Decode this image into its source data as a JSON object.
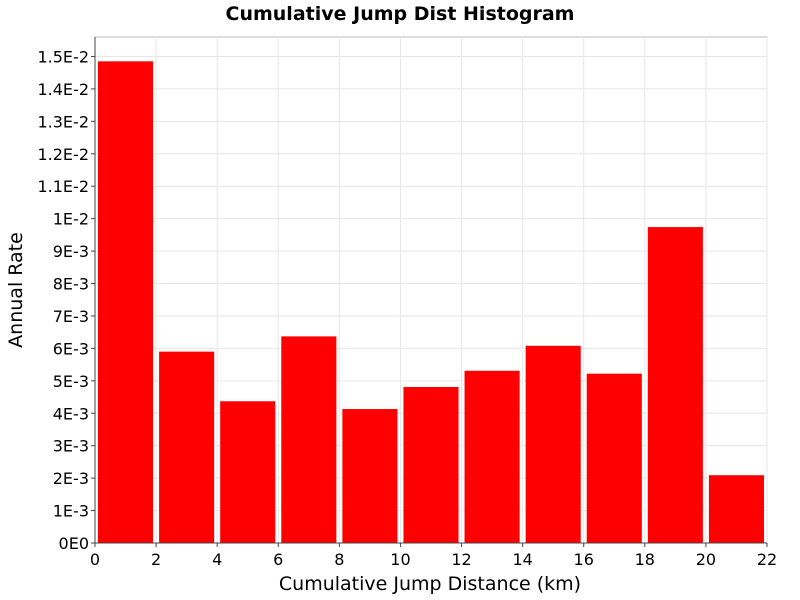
{
  "chart_data": {
    "type": "bar",
    "title": "Cumulative Jump Dist Histogram",
    "xlabel": "Cumulative Jump Distance (km)",
    "ylabel": "Annual Rate",
    "xlim": [
      0,
      22
    ],
    "ylim": [
      0,
      0.0156
    ],
    "bar_color": "#ff0000",
    "bins": [
      {
        "x0": 0,
        "x1": 2,
        "value": 0.01485
      },
      {
        "x0": 2,
        "x1": 4,
        "value": 0.0059
      },
      {
        "x0": 4,
        "x1": 6,
        "value": 0.00437
      },
      {
        "x0": 6,
        "x1": 8,
        "value": 0.00637
      },
      {
        "x0": 8,
        "x1": 10,
        "value": 0.00413
      },
      {
        "x0": 10,
        "x1": 12,
        "value": 0.00481
      },
      {
        "x0": 12,
        "x1": 14,
        "value": 0.00531
      },
      {
        "x0": 14,
        "x1": 16,
        "value": 0.00608
      },
      {
        "x0": 16,
        "x1": 18,
        "value": 0.00522
      },
      {
        "x0": 18,
        "x1": 20,
        "value": 0.00974
      },
      {
        "x0": 20,
        "x1": 22,
        "value": 0.00209
      }
    ],
    "x_ticks": [
      0,
      2,
      4,
      6,
      8,
      10,
      12,
      14,
      16,
      18,
      20,
      22
    ],
    "x_tick_labels": [
      "0",
      "2",
      "4",
      "6",
      "8",
      "10",
      "12",
      "14",
      "16",
      "18",
      "20",
      "22"
    ],
    "y_ticks": [
      0,
      0.001,
      0.002,
      0.003,
      0.004,
      0.005,
      0.006,
      0.007,
      0.008,
      0.009,
      0.01,
      0.011,
      0.012,
      0.013,
      0.014,
      0.015
    ],
    "y_tick_labels": [
      "0E0",
      "1E-3",
      "2E-3",
      "3E-3",
      "4E-3",
      "5E-3",
      "6E-3",
      "7E-3",
      "8E-3",
      "9E-3",
      "1E-2",
      "1.1E-2",
      "1.2E-2",
      "1.3E-2",
      "1.4E-2",
      "1.5E-2"
    ],
    "grid": true,
    "legend": "none"
  }
}
